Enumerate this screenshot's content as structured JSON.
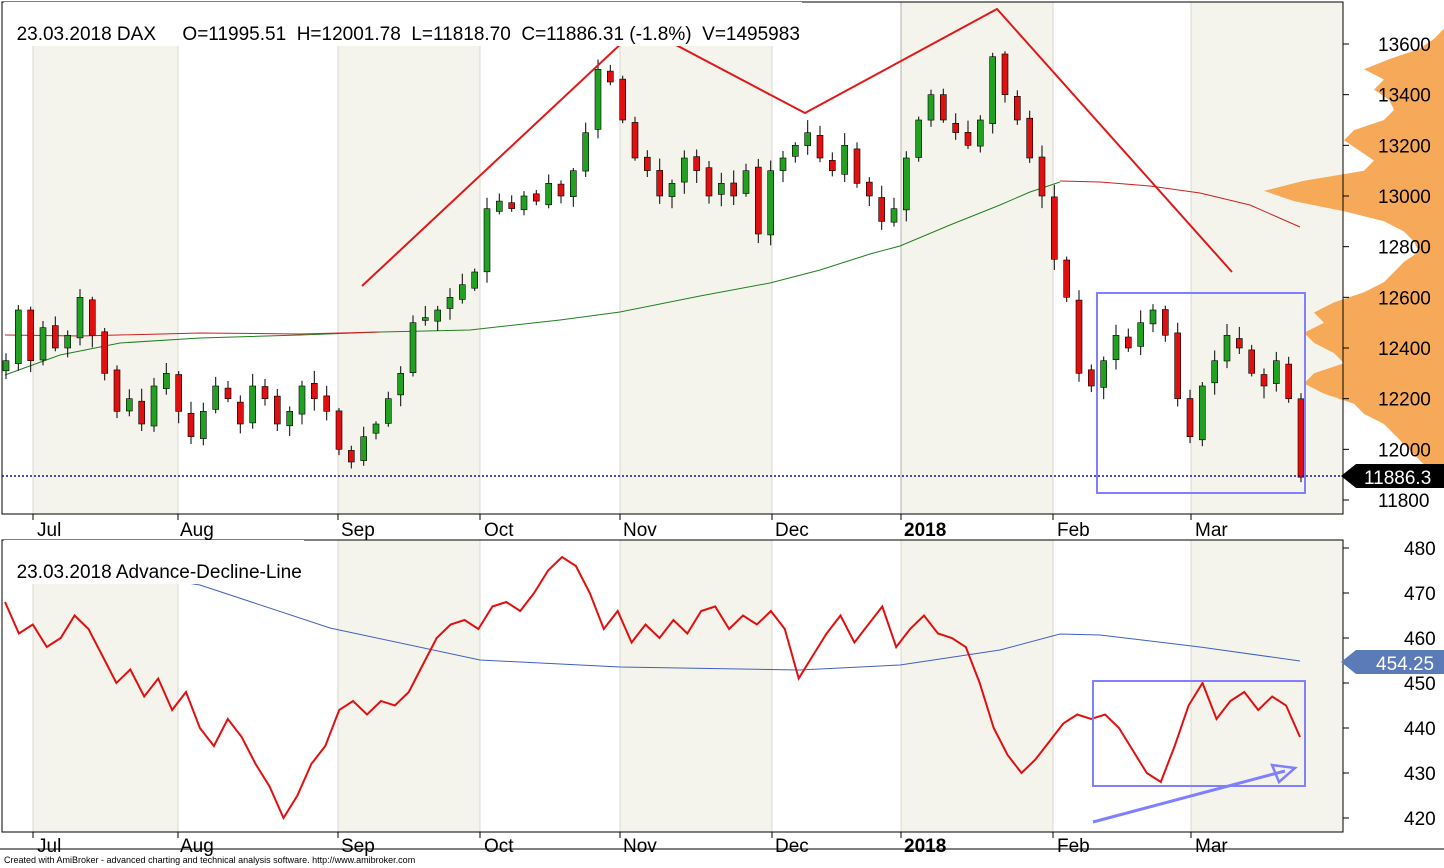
{
  "top_pane": {
    "title": "23.03.2018 DAX",
    "ohlc_text": "O=11995.51  H=12001.78  L=11818.70  C=11886.31 (-1.8%)  V=1495983",
    "last_price_label": "11886.3"
  },
  "bottom_pane": {
    "title": "23.03.2018 Advance-Decline-Line",
    "last_value_label": "454.25"
  },
  "months": [
    {
      "label": "Jul",
      "bold": false
    },
    {
      "label": "Aug",
      "bold": false
    },
    {
      "label": "Sep",
      "bold": false
    },
    {
      "label": "Oct",
      "bold": false
    },
    {
      "label": "Nov",
      "bold": false
    },
    {
      "label": "Dec",
      "bold": false
    },
    {
      "label": "2018",
      "bold": true
    },
    {
      "label": "Feb",
      "bold": false
    },
    {
      "label": "Mar",
      "bold": false
    }
  ],
  "footer_text": "Created with AmiBroker - advanced charting and technical analysis software. http://www.amibroker.com",
  "colors": {
    "up_candle": "#22a022",
    "down_candle": "#e01010",
    "ma_green": "#208020",
    "ma_red": "#cc2020",
    "ad_line": "#e01010",
    "ad_ma": "#4060c0",
    "trend_lines": "#e01818",
    "box": "#8080ff",
    "volume_profile": "#f5a550",
    "band_shade": "#f4f4ec",
    "price_label_bg": "#000000",
    "ad_label_bg": "#5a7ab8"
  },
  "chart_data": [
    {
      "type": "candlestick",
      "title": "23.03.2018 DAX",
      "yticks": [
        11800,
        12000,
        12200,
        12400,
        12600,
        12800,
        13000,
        13200,
        13400,
        13600
      ],
      "ylim": [
        11760,
        13660
      ],
      "last_close": 11886.31,
      "x_months": [
        "Jul",
        "Aug",
        "Sep",
        "Oct",
        "Nov",
        "Dec",
        "2018",
        "Feb",
        "Mar"
      ],
      "series": [
        {
          "name": "DAX",
          "close_path": [
            12350,
            12550,
            12350,
            12480,
            12400,
            12450,
            12600,
            12450,
            12300,
            12150,
            12200,
            12100,
            12250,
            12300,
            12150,
            12050,
            12150,
            12250,
            12200,
            12100,
            12250,
            12200,
            12100,
            12150,
            12250,
            12200,
            12150,
            12000,
            11950,
            12050,
            12100,
            12200,
            12300,
            12500,
            12520,
            12550,
            12600,
            12650,
            12700,
            12950,
            12980,
            12950,
            13000,
            12980,
            13050,
            13000,
            13100,
            13250,
            13500,
            13450,
            13300,
            13150,
            13100,
            13000,
            13050,
            13150,
            13100,
            13000,
            13050,
            13000,
            13100,
            12850,
            13100,
            13150,
            13200,
            13250,
            13150,
            13100,
            13200,
            13050,
            13000,
            12900,
            12950,
            13150,
            13300,
            13400,
            13300,
            13250,
            13200,
            13300,
            13550,
            13400,
            13300,
            13150,
            13000,
            12750,
            12600,
            12300,
            12250,
            12350,
            12450,
            12400,
            12500,
            12550,
            12450,
            12200,
            12050,
            12250,
            12350,
            12450,
            12400,
            12300,
            12250,
            12350,
            12200,
            11890
          ]
        }
      ],
      "moving_averages": [
        {
          "name": "green",
          "start": 12290,
          "end": 13050
        },
        {
          "name": "red",
          "start": 12450,
          "end": 12870
        }
      ],
      "annotations": [
        "head-and-shoulders trend lines",
        "consolidation box Feb-Mar",
        "volume profile histogram on right"
      ]
    },
    {
      "type": "line",
      "title": "23.03.2018 Advance-Decline-Line",
      "yticks": [
        420,
        430,
        440,
        450,
        460,
        470,
        480
      ],
      "ylim": [
        417,
        484
      ],
      "last_value": 454.25,
      "series": [
        {
          "name": "Advance-Decline-Line",
          "values": [
            468,
            461,
            463,
            458,
            460,
            465,
            462,
            456,
            450,
            453,
            447,
            451,
            444,
            448,
            440,
            436,
            442,
            438,
            432,
            427,
            420,
            425,
            432,
            436,
            444,
            446,
            443,
            446,
            445,
            448,
            454,
            460,
            463,
            464,
            462,
            467,
            468,
            466,
            470,
            475,
            478,
            476,
            470,
            462,
            466,
            459,
            463,
            460,
            464,
            461,
            466,
            467,
            462,
            465,
            463,
            466,
            462,
            451,
            456,
            461,
            465,
            459,
            463,
            467,
            458,
            462,
            465,
            461,
            460,
            458,
            450,
            440,
            434,
            430,
            433,
            437,
            441,
            443,
            442,
            443,
            440,
            435,
            430,
            428,
            436,
            445,
            450,
            442,
            446,
            448,
            444,
            447,
            445,
            438
          ]
        },
        {
          "name": "MA",
          "values": [
            477,
            475,
            473,
            470,
            467,
            464,
            461,
            459,
            457,
            456,
            455,
            455,
            455,
            455,
            455,
            456,
            458,
            460,
            461,
            461,
            460,
            459,
            458,
            457,
            456,
            455
          ]
        }
      ],
      "annotations": [
        "consolidation box Feb-Mar",
        "rising arrow Feb-Mar"
      ]
    }
  ]
}
